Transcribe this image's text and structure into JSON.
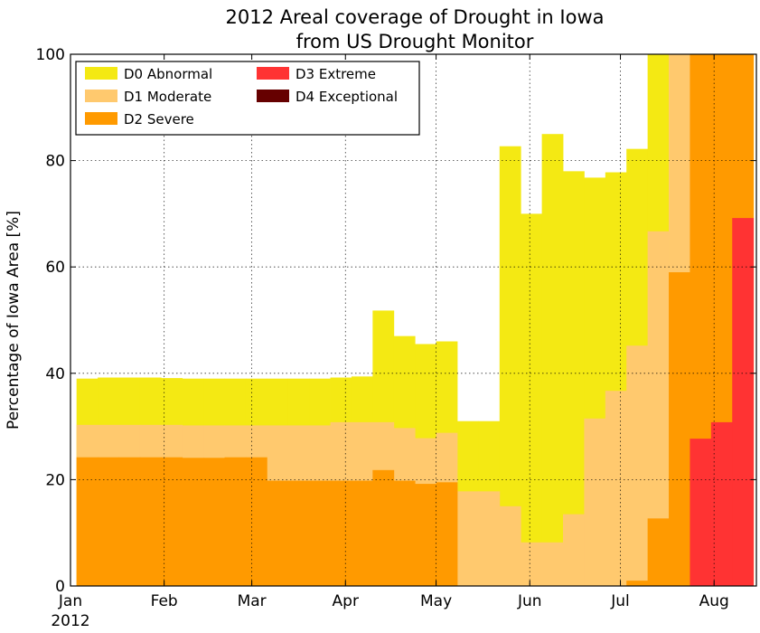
{
  "chart_data": {
    "type": "area",
    "title_lines": [
      "2012 Areal coverage of Drought in Iowa",
      "from US Drought Monitor"
    ],
    "xlabel": "",
    "ylabel": "Percentage of Iowa Area [%]",
    "ylim": [
      0,
      100
    ],
    "xlim": [
      "2012-01-01",
      "2012-08-15"
    ],
    "grid": true,
    "legend_position": "top-left",
    "x_ticks": [
      {
        "date": "2012-01-01",
        "label": "Jan",
        "sublabel": "2012"
      },
      {
        "date": "2012-02-01",
        "label": "Feb"
      },
      {
        "date": "2012-03-01",
        "label": "Mar"
      },
      {
        "date": "2012-04-01",
        "label": "Apr"
      },
      {
        "date": "2012-05-01",
        "label": "May"
      },
      {
        "date": "2012-06-01",
        "label": "Jun"
      },
      {
        "date": "2012-07-01",
        "label": "Jul"
      },
      {
        "date": "2012-08-01",
        "label": "Aug"
      }
    ],
    "y_ticks": [
      0,
      20,
      40,
      60,
      80,
      100
    ],
    "week_start_dates": [
      "2012-01-03",
      "2012-01-10",
      "2012-01-17",
      "2012-01-24",
      "2012-01-31",
      "2012-02-07",
      "2012-02-14",
      "2012-02-21",
      "2012-02-28",
      "2012-03-06",
      "2012-03-13",
      "2012-03-20",
      "2012-03-27",
      "2012-04-03",
      "2012-04-10",
      "2012-04-17",
      "2012-04-24",
      "2012-05-01",
      "2012-05-08",
      "2012-05-15",
      "2012-05-22",
      "2012-05-29",
      "2012-06-05",
      "2012-06-12",
      "2012-06-19",
      "2012-06-26",
      "2012-07-03",
      "2012-07-10",
      "2012-07-17",
      "2012-07-24",
      "2012-07-31",
      "2012-08-07"
    ],
    "week_end_date": "2012-08-14",
    "series": [
      {
        "name": "D0 Abnormal",
        "color": "#f4e913",
        "values": [
          39,
          39.2,
          39.2,
          39.2,
          39.1,
          39,
          39,
          39,
          39,
          39,
          39,
          39,
          39.2,
          39.4,
          51.8,
          47,
          45.5,
          46,
          31,
          31,
          82.7,
          70,
          85,
          78,
          76.8,
          77.8,
          82.2,
          100,
          100,
          100,
          100,
          100
        ]
      },
      {
        "name": "D1 Moderate",
        "color": "#ffc96e",
        "values": [
          30.3,
          30.3,
          30.3,
          30.3,
          30.3,
          30.2,
          30.2,
          30.2,
          30.2,
          30.2,
          30.2,
          30.2,
          30.8,
          30.8,
          30.8,
          29.7,
          27.8,
          28.8,
          17.8,
          17.8,
          15,
          8.2,
          8.2,
          13.5,
          31.5,
          36.7,
          45.2,
          66.7,
          100,
          100,
          100,
          100
        ]
      },
      {
        "name": "D2 Severe",
        "color": "#ff9a00",
        "values": [
          24.2,
          24.2,
          24.2,
          24.2,
          24.2,
          24.1,
          24.1,
          24.2,
          24.2,
          19.8,
          19.8,
          19.8,
          19.8,
          19.8,
          21.8,
          19.8,
          19.2,
          19.5,
          0,
          0,
          0,
          0,
          0,
          0,
          0,
          0,
          1,
          12.7,
          59,
          100,
          100,
          100
        ]
      },
      {
        "name": "D3 Extreme",
        "color": "#ff3333",
        "values": [
          0,
          0,
          0,
          0,
          0,
          0,
          0,
          0,
          0,
          0,
          0,
          0,
          0,
          0,
          0,
          0,
          0,
          0,
          0,
          0,
          0,
          0,
          0,
          0,
          0,
          0,
          0,
          0,
          0,
          27.7,
          30.8,
          69.2
        ]
      },
      {
        "name": "D4 Exceptional",
        "color": "#660000",
        "values": [
          0,
          0,
          0,
          0,
          0,
          0,
          0,
          0,
          0,
          0,
          0,
          0,
          0,
          0,
          0,
          0,
          0,
          0,
          0,
          0,
          0,
          0,
          0,
          0,
          0,
          0,
          0,
          0,
          0,
          0,
          0,
          0
        ]
      }
    ],
    "legend_order": [
      "D0 Abnormal",
      "D1 Moderate",
      "D2 Severe",
      "D3 Extreme",
      "D4 Exceptional"
    ]
  }
}
